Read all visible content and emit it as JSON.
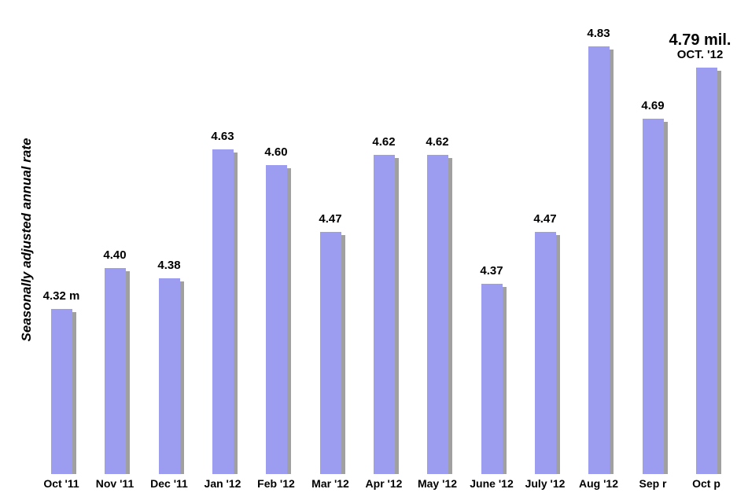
{
  "chart_data": {
    "type": "bar",
    "title": "",
    "ylabel": "Seasonally adjusted annual rate",
    "xlabel": "",
    "categories": [
      "Oct '11",
      "Nov '11",
      "Dec '11",
      "Jan '12",
      "Feb '12",
      "Mar '12",
      "Apr '12",
      "May '12",
      "June '12",
      "July '12",
      "Aug '12",
      "Sep r",
      "Oct p"
    ],
    "values": [
      4.32,
      4.4,
      4.38,
      4.63,
      4.6,
      4.47,
      4.62,
      4.62,
      4.37,
      4.47,
      4.83,
      4.69,
      4.79
    ],
    "value_labels": [
      "4.32 m",
      "4.40",
      "4.38",
      "4.63",
      "4.60",
      "4.47",
      "4.62",
      "4.62",
      "4.37",
      "4.47",
      "4.83",
      "4.69",
      "4.79 mil."
    ],
    "highlight_index": 12,
    "highlight_sublabel": "OCT. '12",
    "ylim": [
      4.0,
      4.92
    ],
    "grid": false,
    "legend": false,
    "colors": {
      "bar": "#9c9cf0",
      "bar_shadow": "#a0a0a0",
      "text": "#000000",
      "background": "#ffffff"
    }
  }
}
